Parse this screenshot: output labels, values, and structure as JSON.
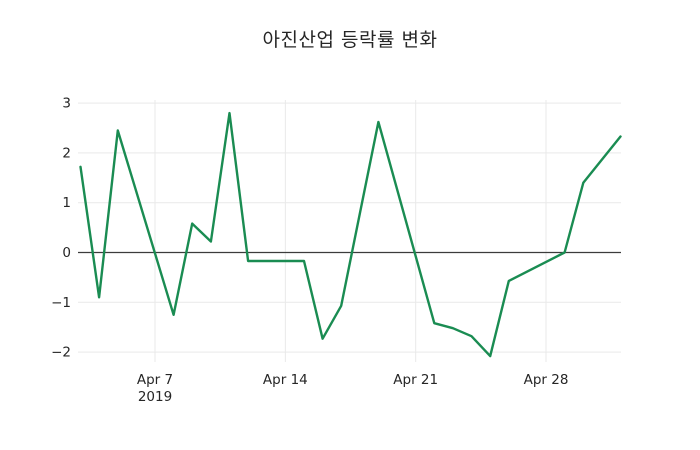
{
  "chart_data": {
    "type": "line",
    "title": "아진산업 등락률 변화",
    "xlabel": "",
    "ylabel": "",
    "grid": true,
    "legend": "none",
    "ylim": [
      -2.2,
      3.06
    ],
    "xlim_days_april2019": [
      2.85,
      32.15
    ],
    "x_ticks": [
      {
        "label": "Apr 7",
        "sublabel": "2019",
        "day": 7
      },
      {
        "label": "Apr 14",
        "day": 14
      },
      {
        "label": "Apr 21",
        "day": 21
      },
      {
        "label": "Apr 28",
        "day": 28
      }
    ],
    "y_ticks": [
      {
        "label": "3",
        "value": 3
      },
      {
        "label": "2",
        "value": 2
      },
      {
        "label": "1",
        "value": 1
      },
      {
        "label": "0",
        "value": 0
      },
      {
        "label": "−1",
        "value": -1
      },
      {
        "label": "−2",
        "value": -2
      }
    ],
    "zero_line": true,
    "series": [
      {
        "color": "#1a8c52",
        "points": [
          {
            "date": "2019-04-03",
            "value": 1.72
          },
          {
            "date": "2019-04-04",
            "value": -0.9
          },
          {
            "date": "2019-04-05",
            "value": 2.45
          },
          {
            "date": "2019-04-08",
            "value": -1.25
          },
          {
            "date": "2019-04-09",
            "value": 0.58
          },
          {
            "date": "2019-04-10",
            "value": 0.22
          },
          {
            "date": "2019-04-11",
            "value": 2.8
          },
          {
            "date": "2019-04-12",
            "value": -0.17
          },
          {
            "date": "2019-04-15",
            "value": -0.17
          },
          {
            "date": "2019-04-16",
            "value": -1.73
          },
          {
            "date": "2019-04-17",
            "value": -1.07
          },
          {
            "date": "2019-04-18",
            "value": 0.78
          },
          {
            "date": "2019-04-19",
            "value": 2.62
          },
          {
            "date": "2019-04-22",
            "value": -1.42
          },
          {
            "date": "2019-04-23",
            "value": -1.52
          },
          {
            "date": "2019-04-24",
            "value": -1.68
          },
          {
            "date": "2019-04-25",
            "value": -2.08
          },
          {
            "date": "2019-04-26",
            "value": -0.57
          },
          {
            "date": "2019-04-29",
            "value": 0.0
          },
          {
            "date": "2019-04-30",
            "value": 1.4
          },
          {
            "date": "2019-05-02",
            "value": 2.33
          }
        ]
      }
    ],
    "colors": {
      "background": "#ffffff",
      "line": "#1a8c52",
      "grid": "#e9e9e9",
      "zero_line": "#3c3c3c",
      "text": "#262626"
    }
  }
}
